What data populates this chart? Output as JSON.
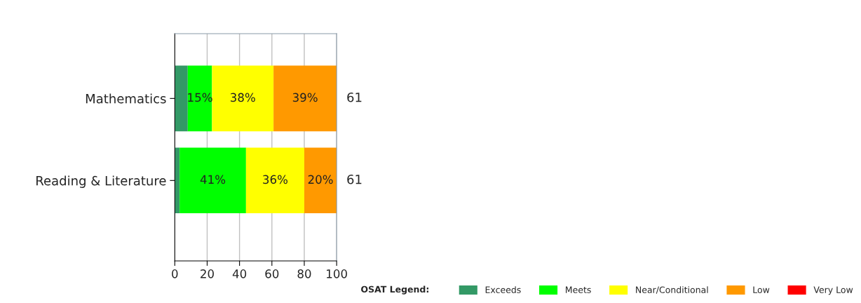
{
  "chart_data": {
    "type": "bar",
    "orientation": "horizontal",
    "stacked": true,
    "categories": [
      "Mathematics",
      "Reading & Literature"
    ],
    "series": [
      {
        "name": "Exceeds",
        "color": "#339966",
        "values": [
          8,
          3
        ],
        "value_labels": [
          null,
          null
        ]
      },
      {
        "name": "Meets",
        "color": "#00ff00",
        "values": [
          15,
          41
        ],
        "value_labels": [
          "15%",
          "41%"
        ]
      },
      {
        "name": "Near/Conditional",
        "color": "#ffff00",
        "values": [
          38,
          36
        ],
        "value_labels": [
          "38%",
          "36%"
        ]
      },
      {
        "name": "Low",
        "color": "#ff9900",
        "values": [
          39,
          20
        ],
        "value_labels": [
          "39%",
          "20%"
        ]
      },
      {
        "name": "Very Low",
        "color": "#ff0000",
        "values": [
          0,
          0
        ],
        "value_labels": [
          null,
          null
        ]
      }
    ],
    "xlim": [
      0,
      100
    ],
    "xticks": [
      0,
      20,
      40,
      60,
      80,
      100
    ],
    "grid": "x",
    "legend": "bottom right",
    "legend_title": "OSAT Legend:",
    "annotations": [
      {
        "text": "61",
        "x": 100,
        "y": "Mathematics"
      },
      {
        "text": "61",
        "x": 100,
        "y": "Reading & Literature"
      }
    ]
  }
}
